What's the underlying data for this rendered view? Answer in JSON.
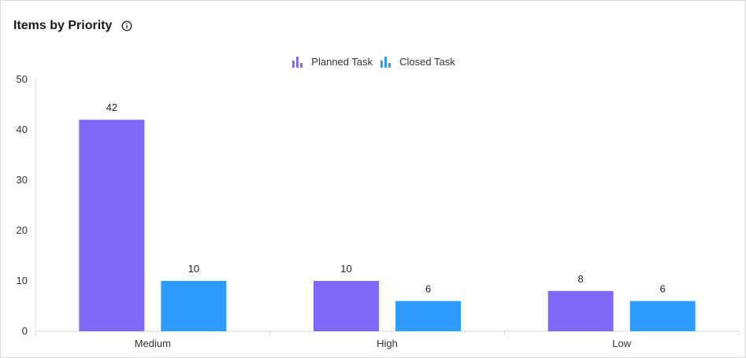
{
  "card": {
    "title": "Items by Priority",
    "info_icon": "info-circle-icon"
  },
  "chart_data": {
    "type": "bar",
    "categories": [
      "Medium",
      "High",
      "Low"
    ],
    "series": [
      {
        "name": "Planned Task",
        "values": [
          42,
          10,
          8
        ],
        "color": "#8068f8"
      },
      {
        "name": "Closed Task",
        "values": [
          10,
          6,
          6
        ],
        "color": "#2f9bff"
      }
    ],
    "ylim": [
      0,
      50
    ],
    "yticks": [
      0,
      10,
      20,
      30,
      40,
      50
    ],
    "grid": false,
    "legend_position": "top-center",
    "data_labels": true
  }
}
